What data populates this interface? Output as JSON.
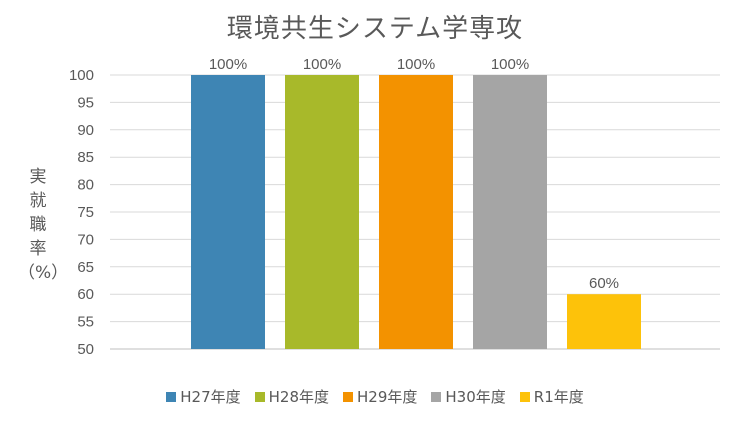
{
  "chart_data": {
    "type": "bar",
    "title": "環境共生システム学専攻",
    "ylabel": "実就職率（%）",
    "ylabel_lines": [
      "実",
      "就",
      "職",
      "率",
      "（%）"
    ],
    "categories": [
      "H27年度",
      "H28年度",
      "H29年度",
      "H30年度",
      "R1年度"
    ],
    "values": [
      100,
      100,
      100,
      100,
      60
    ],
    "data_labels": [
      "100%",
      "100%",
      "100%",
      "100%",
      "60%"
    ],
    "colors": [
      "#3e85b4",
      "#a8b92a",
      "#f39200",
      "#a5a5a5",
      "#fdc20a"
    ],
    "ylim": [
      50,
      100
    ],
    "yticks": [
      50,
      55,
      60,
      65,
      70,
      75,
      80,
      85,
      90,
      95,
      100
    ],
    "grid": true,
    "legend_position": "bottom"
  }
}
